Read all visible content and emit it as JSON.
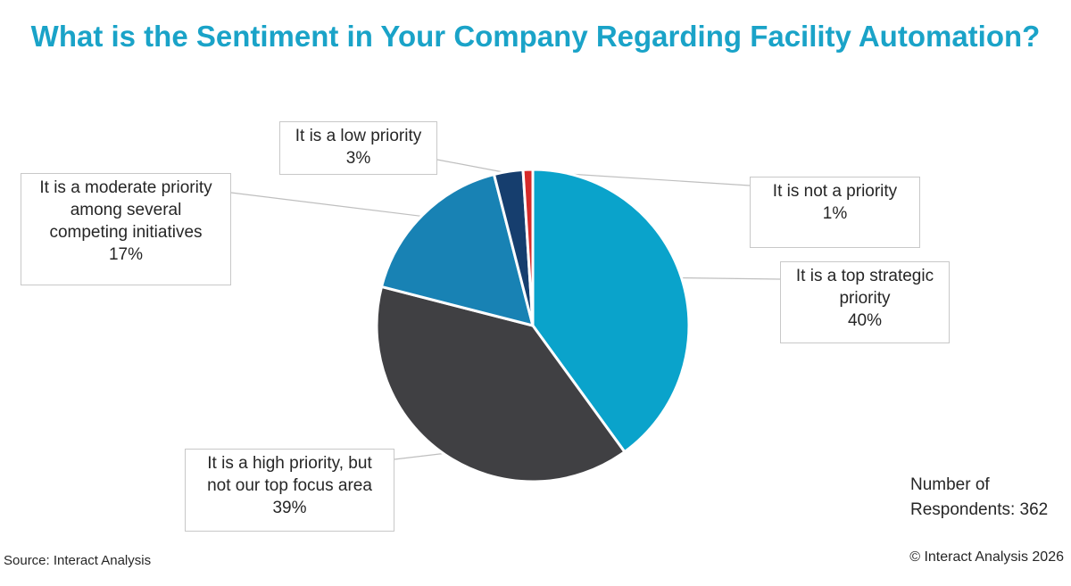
{
  "title": "What is the Sentiment in Your Company Regarding Facility Automation?",
  "chart_data": {
    "type": "pie",
    "title": "What is the Sentiment in Your Company Regarding Facility Automation?",
    "slices": [
      {
        "label_lines": [
          "It is a top strategic",
          "priority"
        ],
        "value": 40,
        "value_label": "40%",
        "color": "#0aa3cb"
      },
      {
        "label_lines": [
          "It is a high priority, but",
          "not our top focus area"
        ],
        "value": 39,
        "value_label": "39%",
        "color": "#404043"
      },
      {
        "label_lines": [
          "It is a moderate priority",
          "among several",
          "competing initiatives"
        ],
        "value": 17,
        "value_label": "17%",
        "color": "#1882b4"
      },
      {
        "label_lines": [
          "It is a low priority"
        ],
        "value": 3,
        "value_label": "3%",
        "color": "#163e6e"
      },
      {
        "label_lines": [
          "It is not a priority"
        ],
        "value": 1,
        "value_label": "1%",
        "color": "#d62a2a"
      }
    ]
  },
  "respondents": {
    "line1": "Number of",
    "line2": "Respondents: 362"
  },
  "source": "Source: Interact Analysis",
  "copyright": "© Interact Analysis 2026"
}
